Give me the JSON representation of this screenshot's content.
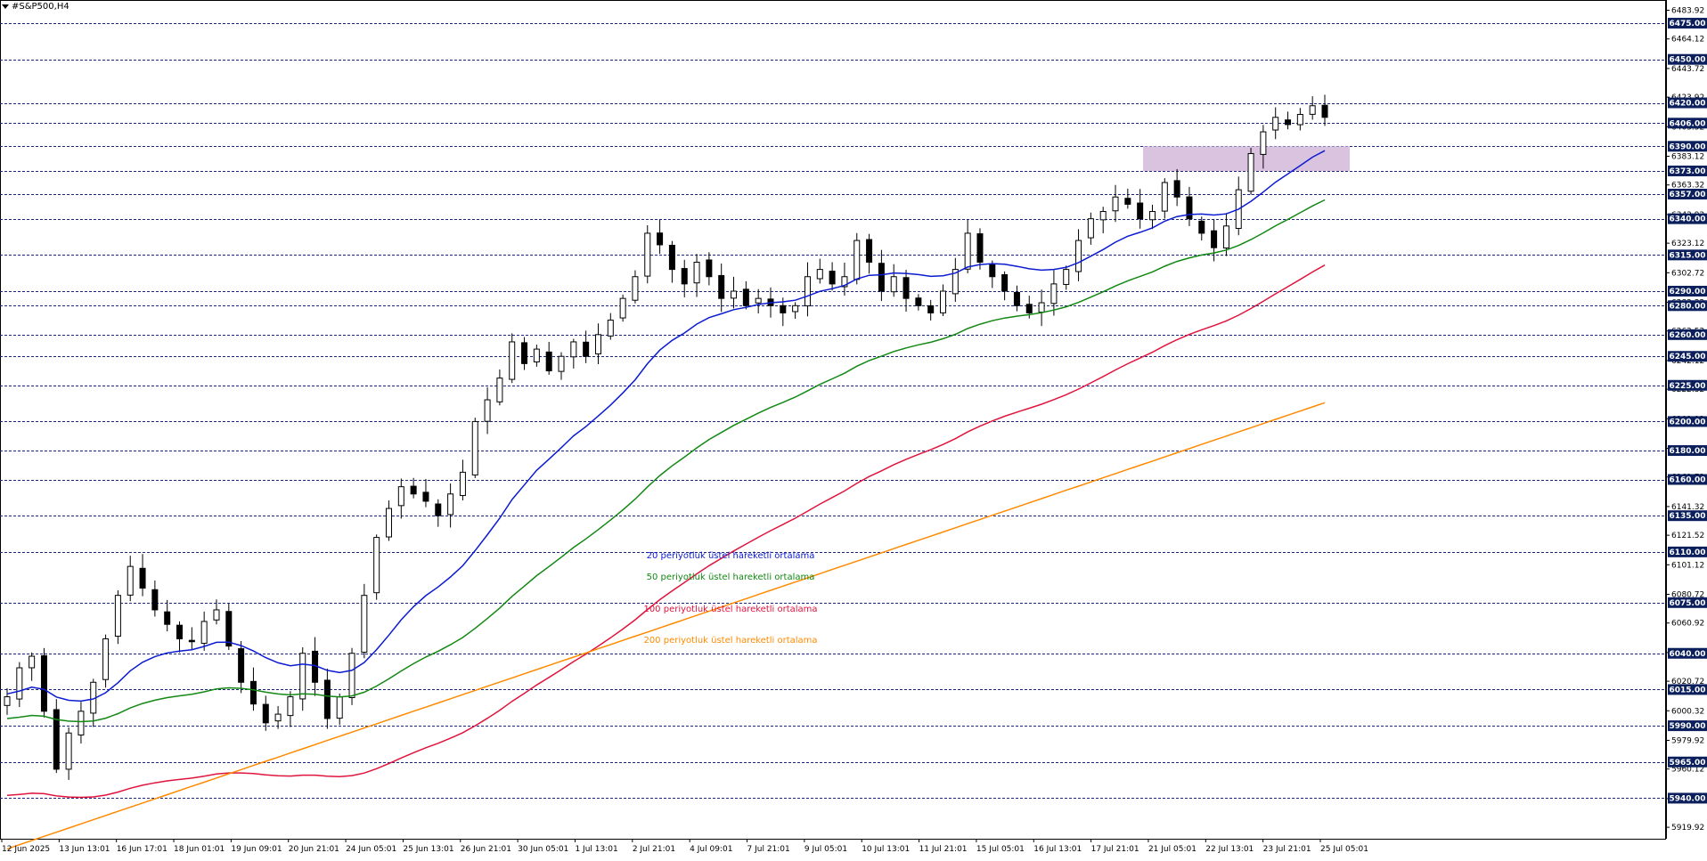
{
  "header": {
    "symbol": "#S&P500,H4"
  },
  "chart_data": {
    "type": "candlestick",
    "symbol": "#S&P500",
    "timeframe": "H4",
    "ylim": [
      5912.0,
      6491.0
    ],
    "y_tick_labels": [
      6483.92,
      6464.12,
      6443.72,
      6423.92,
      6403.52,
      6383.12,
      6363.32,
      6342.92,
      6323.12,
      6302.72,
      6282.32,
      6262.52,
      6242.12,
      6222.32,
      6201.92,
      6181.52,
      6161.72,
      6141.32,
      6121.52,
      6101.12,
      6080.72,
      6060.92,
      6040.52,
      6020.72,
      6000.32,
      5979.92,
      5960.12,
      5939.72,
      5919.92
    ],
    "levels": [
      6475,
      6450,
      6420,
      6406,
      6390,
      6373,
      6357,
      6340,
      6315,
      6290,
      6280,
      6260,
      6245,
      6225,
      6200,
      6180,
      6160,
      6135,
      6110,
      6075,
      6040,
      6015,
      5990,
      5965,
      5940
    ],
    "x_labels": [
      "12 Jun 2025",
      "13 Jun 13:01",
      "16 Jun 17:01",
      "18 Jun 01:01",
      "19 Jun 09:01",
      "20 Jun 21:01",
      "24 Jun 05:01",
      "25 Jun 13:01",
      "26 Jun 21:01",
      "30 Jun 05:01",
      "1 Jul 13:01",
      "2 Jul 21:01",
      "4 Jul 09:01",
      "7 Jul 21:01",
      "9 Jul 05:01",
      "10 Jul 13:01",
      "11 Jul 21:01",
      "15 Jul 05:01",
      "16 Jul 13:01",
      "17 Jul 21:01",
      "21 Jul 05:01",
      "22 Jul 13:01",
      "23 Jul 21:01",
      "25 Jul 05:01"
    ],
    "price_path": [
      6010,
      6030,
      6038,
      6000,
      5960,
      5985,
      6000,
      6020,
      6050,
      6080,
      6100,
      6085,
      6070,
      6060,
      6050,
      6048,
      6062,
      6070,
      6045,
      6020,
      6005,
      5992,
      5998,
      6010,
      6040,
      6020,
      5995,
      6010,
      6040,
      6080,
      6120,
      6140,
      6155,
      6150,
      6145,
      6135,
      6150,
      6165,
      6200,
      6215,
      6230,
      6255,
      6240,
      6250,
      6235,
      6245,
      6255,
      6245,
      6260,
      6270,
      6285,
      6300,
      6330,
      6322,
      6305,
      6295,
      6310,
      6300,
      6285,
      6290,
      6280,
      6285,
      6280,
      6275,
      6280,
      6300,
      6305,
      6295,
      6300,
      6325,
      6310,
      6290,
      6300,
      6285,
      6280,
      6275,
      6290,
      6305,
      6330,
      6310,
      6300,
      6290,
      6280,
      6275,
      6282,
      6295,
      6305,
      6325,
      6340,
      6345,
      6355,
      6350,
      6340,
      6345,
      6365,
      6355,
      6340,
      6330,
      6320,
      6335,
      6360,
      6385,
      6400,
      6410,
      6405,
      6412,
      6418,
      6410
    ],
    "sample_candle_ohlc": [
      {
        "time": "25 Jul 05:01",
        "open": 6415,
        "high": 6422,
        "low": 6405,
        "close": 6410
      }
    ],
    "series": [
      {
        "name": "20 periyotluk üstel hareketli ortalama",
        "color": "#0b1bd1"
      },
      {
        "name": "50 periyotluk üstel hareketli ortalama",
        "color": "#138813"
      },
      {
        "name": "100 periyotluk üstel hareketli ortalama",
        "color": "#e0143c"
      },
      {
        "name": "200 periyotluk üstel hareketli ortalama",
        "color": "#ff8a00"
      }
    ],
    "ema_endpoints": {
      "ema20": [
        6012,
        6387
      ],
      "ema50": [
        5995,
        6353
      ],
      "ema100": [
        5942,
        6308
      ],
      "ema200": [
        5905,
        6213
      ]
    },
    "zone": {
      "from": 6373,
      "to": 6390,
      "color": "#d6bcdc"
    }
  },
  "legend": [
    {
      "label": "20 periyotluk üstel hareketli ortalama",
      "color": "#0b1bd1"
    },
    {
      "label": "50 periyotluk üstel hareketli ortalama",
      "color": "#138813"
    },
    {
      "label": "100 periyotluk üstel hareketli ortalama",
      "color": "#e0143c"
    },
    {
      "label": "200 periyotluk üstel hareketli ortalama",
      "color": "#ff8a00"
    }
  ]
}
